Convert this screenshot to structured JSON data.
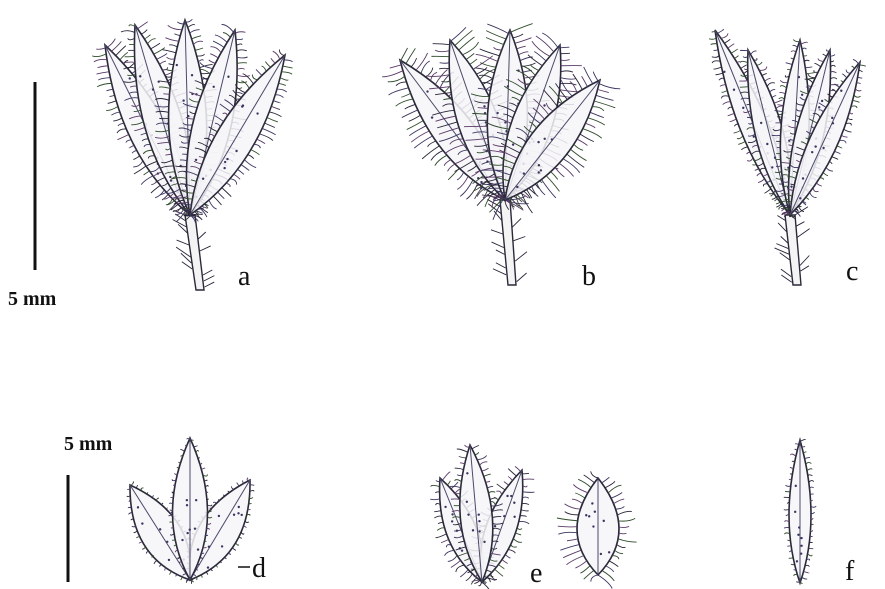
{
  "scale_bars": [
    {
      "label": "5 mm"
    },
    {
      "label": "5 mm"
    }
  ],
  "panels": [
    {
      "label": "a"
    },
    {
      "label": "b"
    },
    {
      "label": "c"
    },
    {
      "label": "d"
    },
    {
      "label": "e"
    },
    {
      "label": "f"
    }
  ]
}
